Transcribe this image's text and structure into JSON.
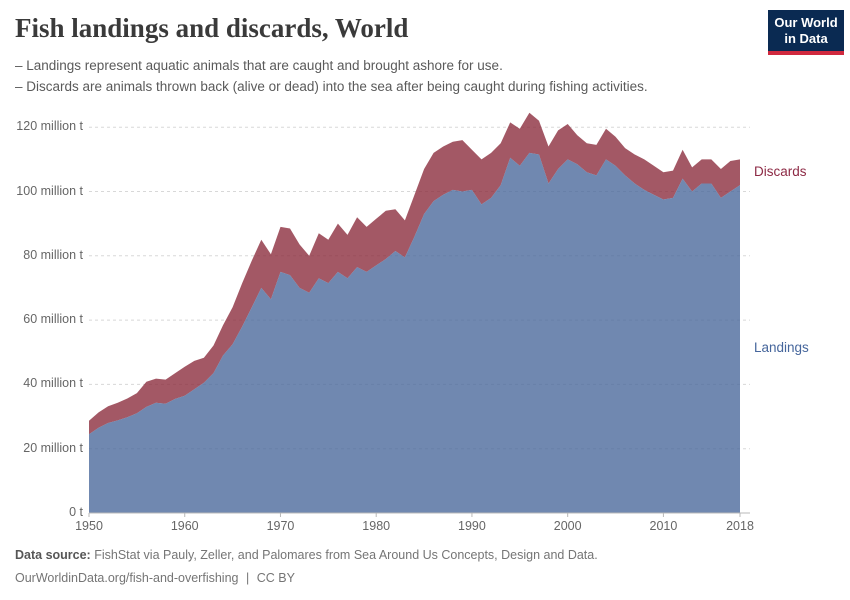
{
  "header": {
    "title": "Fish landings and discards, World",
    "subtitle_lines": [
      "– Landings represent aquatic animals that are caught and brought ashore for use.",
      "– Discards are animals thrown back (alive or dead) into the sea after being caught during fishing activities."
    ],
    "logo": {
      "line1": "Our World",
      "line2": "in Data",
      "bg": "#0a2a52",
      "accent": "#d0293e"
    }
  },
  "chart_data": {
    "type": "area",
    "stacked": true,
    "title": "Fish landings and discards, World",
    "xlabel": "",
    "ylabel": "",
    "unit": "million tonnes",
    "ylim": [
      0,
      120
    ],
    "grid": "dashed horizontal",
    "legend_position": "right edge labels",
    "x": [
      1950,
      1951,
      1952,
      1953,
      1954,
      1955,
      1956,
      1957,
      1958,
      1959,
      1960,
      1961,
      1962,
      1963,
      1964,
      1965,
      1966,
      1967,
      1968,
      1969,
      1970,
      1971,
      1972,
      1973,
      1974,
      1975,
      1976,
      1977,
      1978,
      1979,
      1980,
      1981,
      1982,
      1983,
      1984,
      1985,
      1986,
      1987,
      1988,
      1989,
      1990,
      1991,
      1992,
      1993,
      1994,
      1995,
      1996,
      1997,
      1998,
      1999,
      2000,
      2001,
      2002,
      2003,
      2004,
      2005,
      2006,
      2007,
      2008,
      2009,
      2010,
      2011,
      2012,
      2013,
      2014,
      2015,
      2016,
      2017,
      2018
    ],
    "series": [
      {
        "name": "Landings",
        "color": "#4C6A9C",
        "label_color": "#46669c",
        "values": [
          24.5,
          26.5,
          28.0,
          28.8,
          29.8,
          31.0,
          33.0,
          34.3,
          34.0,
          35.5,
          36.5,
          38.5,
          40.5,
          43.5,
          49.0,
          52.5,
          58.0,
          64.0,
          70.0,
          66.5,
          75.0,
          74.0,
          70.0,
          68.5,
          73.0,
          71.5,
          75.0,
          73.0,
          76.5,
          75.0,
          77.0,
          79.0,
          81.5,
          79.5,
          86.0,
          93.0,
          97.0,
          99.0,
          100.5,
          100.0,
          100.5,
          96.0,
          98.0,
          102.0,
          110.5,
          108.0,
          112.0,
          111.5,
          102.5,
          107.0,
          110.0,
          108.5,
          106.0,
          105.0,
          110.0,
          108.0,
          105.0,
          102.5,
          100.5,
          99.0,
          97.5,
          98.0,
          104.0,
          100.0,
          102.5,
          102.5,
          98.0,
          100.0,
          102.0
        ]
      },
      {
        "name": "Discards",
        "color": "#8C2E3E",
        "label_color": "#8d2a45",
        "values": [
          4.2,
          4.8,
          5.2,
          5.5,
          5.8,
          6.3,
          7.8,
          7.5,
          7.5,
          8.0,
          9.0,
          8.8,
          7.8,
          8.6,
          9.4,
          11.5,
          13.5,
          14.5,
          15.0,
          14.0,
          14.0,
          14.5,
          13.5,
          11.5,
          14.0,
          13.5,
          15.0,
          13.5,
          15.5,
          14.0,
          14.5,
          15.0,
          13.0,
          11.5,
          13.0,
          14.0,
          15.0,
          15.0,
          15.0,
          16.0,
          12.5,
          14.0,
          14.0,
          13.0,
          11.0,
          11.5,
          12.5,
          10.5,
          11.5,
          12.0,
          11.0,
          9.0,
          9.0,
          9.5,
          9.5,
          9.0,
          8.5,
          9.0,
          9.5,
          9.0,
          8.5,
          8.5,
          9.0,
          7.5,
          7.5,
          7.5,
          9.0,
          9.5,
          8.0
        ]
      }
    ],
    "fill_opacity": 0.8,
    "y_ticks": [
      {
        "value": 0,
        "label": "0 t"
      },
      {
        "value": 20,
        "label": "20 million t"
      },
      {
        "value": 40,
        "label": "40 million t"
      },
      {
        "value": 60,
        "label": "60 million t"
      },
      {
        "value": 80,
        "label": "80 million t"
      },
      {
        "value": 100,
        "label": "100 million t"
      },
      {
        "value": 120,
        "label": "120 million t"
      }
    ],
    "x_ticks": [
      1950,
      1960,
      1970,
      1980,
      1990,
      2000,
      2010,
      2018
    ],
    "grid_color": "#d8d8d8",
    "axis_color": "#b8b8b8"
  },
  "footer": {
    "source_label": "Data source:",
    "source_text": "FishStat via Pauly, Zeller, and Palomares from Sea Around Us Concepts, Design and Data.",
    "link": "OurWorldinData.org/fish-and-overfishing",
    "divider": "|",
    "license": "CC BY"
  }
}
